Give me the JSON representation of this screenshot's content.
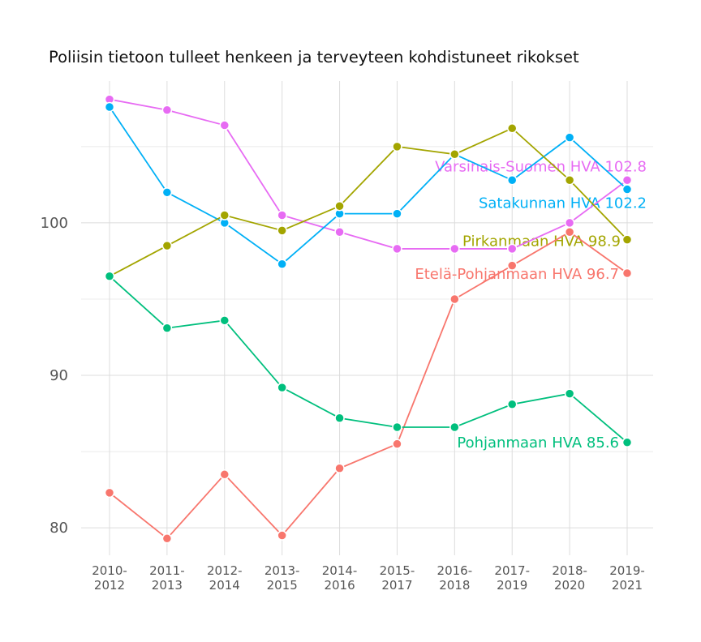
{
  "chart_data": {
    "type": "line",
    "title": "Poliisin tietoon tulleet henkeen ja terveyteen kohdistuneet rikokset",
    "xlabel": "",
    "ylabel": "",
    "categories": [
      [
        "2010-",
        "2012"
      ],
      [
        "2011-",
        "2013"
      ],
      [
        "2012-",
        "2014"
      ],
      [
        "2013-",
        "2015"
      ],
      [
        "2014-",
        "2016"
      ],
      [
        "2015-",
        "2017"
      ],
      [
        "2016-",
        "2018"
      ],
      [
        "2017-",
        "2019"
      ],
      [
        "2018-",
        "2020"
      ],
      [
        "2019-",
        "2021"
      ]
    ],
    "ylim": [
      78.2,
      109.3
    ],
    "yticks": [
      80,
      90,
      100
    ],
    "grid": true,
    "legend": "none (direct end labels)",
    "series": [
      {
        "name": "Varsinais-Suomen HVA",
        "end_label": "Varsinais-Suomen HVA 102.8",
        "color": "#E76BF3",
        "values": [
          108.1,
          107.4,
          106.4,
          100.5,
          99.4,
          98.3,
          98.3,
          98.3,
          100.0,
          102.8
        ]
      },
      {
        "name": "Satakunnan HVA",
        "end_label": "Satakunnan HVA 102.2",
        "color": "#00B0F6",
        "values": [
          107.6,
          102.0,
          100.0,
          97.3,
          100.6,
          100.6,
          104.5,
          102.8,
          105.6,
          102.2
        ]
      },
      {
        "name": "Pirkanmaan HVA",
        "end_label": "Pirkanmaan HVA 98.9",
        "color": "#A3A500",
        "values": [
          96.5,
          98.5,
          100.5,
          99.5,
          101.1,
          105.0,
          104.5,
          106.2,
          102.8,
          98.9
        ]
      },
      {
        "name": "Etelä-Pohjanmaan HVA",
        "end_label": "Etelä-Pohjanmaan HVA 96.7",
        "color": "#F8766D",
        "values": [
          82.3,
          79.3,
          83.5,
          79.5,
          83.9,
          85.5,
          95.0,
          97.2,
          99.4,
          96.7
        ]
      },
      {
        "name": "Pohjanmaan HVA",
        "end_label": "Pohjanmaan HVA 85.6",
        "color": "#00BF7D",
        "values": [
          96.5,
          93.1,
          93.6,
          89.2,
          87.2,
          86.6,
          86.6,
          88.1,
          88.8,
          85.6
        ]
      }
    ]
  }
}
